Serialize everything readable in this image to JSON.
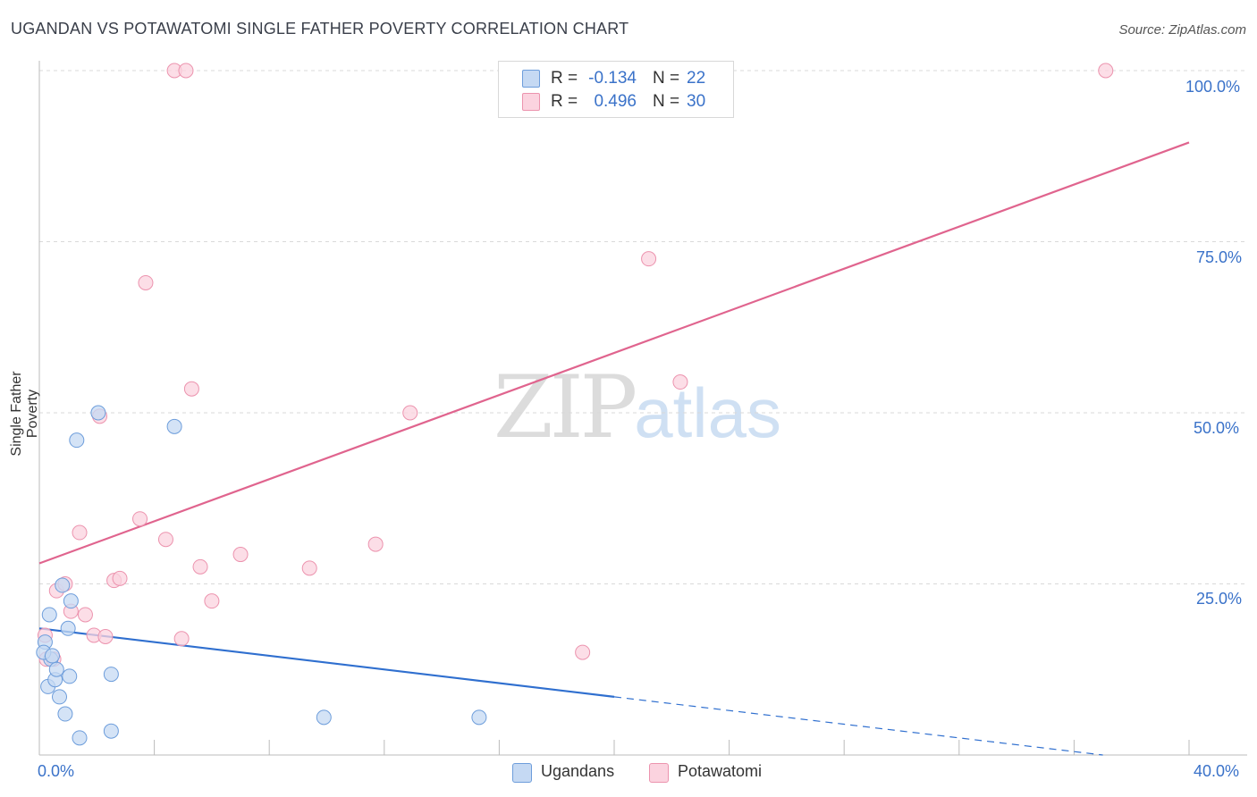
{
  "header": {
    "title": "UGANDAN VS POTAWATOMI SINGLE FATHER POVERTY CORRELATION CHART",
    "source": "Source: ZipAtlas.com"
  },
  "watermark": {
    "zip": "ZIP",
    "atlas": "atlas"
  },
  "stats_box": {
    "rows": [
      {
        "r_label": "R =",
        "r_value": "-0.134",
        "n_label": "N =",
        "n_value": "22",
        "color": "#a9c8f0"
      },
      {
        "r_label": "R =",
        "r_value": "0.496",
        "n_label": "N =",
        "n_value": "30",
        "color": "#f7b9cc"
      }
    ]
  },
  "legend": {
    "items": [
      {
        "label": "Ugandans",
        "color": "#a9c8f0"
      },
      {
        "label": "Potawatomi",
        "color": "#f7b9cc"
      }
    ]
  },
  "axes": {
    "x_min_label": "0.0%",
    "x_max_label": "40.0%",
    "y_tick_labels": [
      "100.0%",
      "75.0%",
      "50.0%",
      "25.0%"
    ]
  },
  "colors": {
    "ugandans_fill": "#c5d9f3",
    "ugandans_stroke": "#6d9ddb",
    "ugandans_line": "#2f6fcf",
    "potawatomi_fill": "#fbd3df",
    "potawatomi_stroke": "#ec93ae",
    "potawatomi_line": "#e0648e",
    "grid": "#d9d9d9",
    "axis": "#bbbbbb",
    "tick_text": "#3a72c9"
  },
  "chart_data": {
    "type": "scatter",
    "title": "UGANDAN VS POTAWATOMI SINGLE FATHER POVERTY CORRELATION CHART",
    "xlabel": "",
    "ylabel": "Single Father Poverty",
    "xlim": [
      0,
      40
    ],
    "ylim": [
      0,
      100
    ],
    "x_unit": "%",
    "y_unit": "%",
    "y_ticks": [
      25,
      50,
      75,
      100
    ],
    "grid": true,
    "series": [
      {
        "name": "Ugandans",
        "r": -0.134,
        "n": 22,
        "points": [
          [
            0.2,
            16.5
          ],
          [
            0.35,
            20.5
          ],
          [
            0.4,
            14.0
          ],
          [
            0.3,
            10.0
          ],
          [
            0.55,
            11.0
          ],
          [
            0.6,
            12.5
          ],
          [
            0.7,
            8.5
          ],
          [
            0.8,
            24.8
          ],
          [
            0.9,
            6.0
          ],
          [
            1.0,
            18.5
          ],
          [
            1.1,
            22.5
          ],
          [
            1.05,
            11.5
          ],
          [
            1.3,
            46.0
          ],
          [
            1.4,
            2.5
          ],
          [
            2.05,
            50.0
          ],
          [
            2.5,
            3.5
          ],
          [
            2.5,
            11.8
          ],
          [
            4.7,
            48.0
          ],
          [
            9.9,
            5.5
          ],
          [
            15.3,
            5.5
          ],
          [
            0.15,
            15.0
          ],
          [
            0.45,
            14.5
          ]
        ],
        "trend": {
          "x_start": 0,
          "y_start": 18.5,
          "x_solid_end": 20,
          "y_solid_end": 8.5,
          "x_dash_end": 37,
          "y_dash_end": 0
        }
      },
      {
        "name": "Potawatomi",
        "r": 0.496,
        "n": 30,
        "points": [
          [
            0.2,
            17.5
          ],
          [
            0.25,
            14.0
          ],
          [
            0.5,
            14.0
          ],
          [
            0.6,
            24.0
          ],
          [
            0.9,
            25.0
          ],
          [
            1.1,
            21.0
          ],
          [
            1.4,
            32.5
          ],
          [
            1.6,
            20.5
          ],
          [
            1.9,
            17.5
          ],
          [
            2.3,
            17.3
          ],
          [
            2.6,
            25.5
          ],
          [
            2.8,
            25.8
          ],
          [
            3.5,
            34.5
          ],
          [
            3.7,
            69.0
          ],
          [
            4.4,
            31.5
          ],
          [
            4.7,
            100.0
          ],
          [
            4.95,
            17.0
          ],
          [
            5.1,
            100.0
          ],
          [
            5.3,
            53.5
          ],
          [
            5.6,
            27.5
          ],
          [
            6.0,
            22.5
          ],
          [
            7.0,
            29.3
          ],
          [
            9.4,
            27.3
          ],
          [
            11.7,
            30.8
          ],
          [
            12.9,
            50.0
          ],
          [
            18.9,
            15.0
          ],
          [
            21.2,
            72.5
          ],
          [
            22.3,
            54.5
          ],
          [
            37.1,
            100.0
          ],
          [
            2.1,
            49.5
          ]
        ],
        "trend": {
          "x_start": 0,
          "y_start": 28.0,
          "x_end": 40,
          "y_end": 89.5
        }
      }
    ]
  }
}
